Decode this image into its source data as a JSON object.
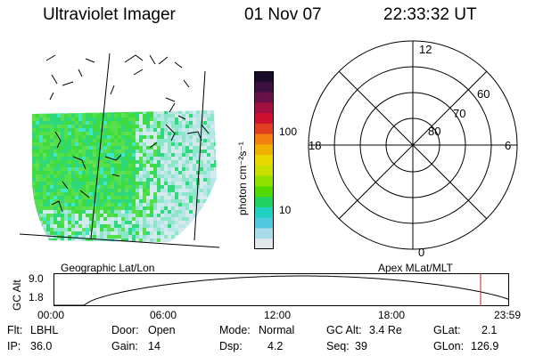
{
  "header": {
    "instrument": "Ultraviolet Imager",
    "date": "01 Nov 07",
    "time": "22:33:32 UT"
  },
  "colorbar": {
    "unit_label": "photon cm⁻²s⁻¹",
    "ticks": [
      "100",
      "10"
    ],
    "colors": [
      "#1a0a2a",
      "#3b1040",
      "#6a1048",
      "#a01040",
      "#cc1030",
      "#e04020",
      "#f08010",
      "#f0b000",
      "#e8d800",
      "#c8e000",
      "#90e000",
      "#50d800",
      "#20d060",
      "#20d0c0",
      "#50c8e0",
      "#a8dce8",
      "#dfe9ec"
    ]
  },
  "image_panel": {
    "label": "Geographic Lat/Lon",
    "palette": [
      "#3fdc3f",
      "#55e04a",
      "#2fd87a",
      "#8ce6c8",
      "#b8e6e8",
      "#d4eaec",
      "#62e05a",
      "#3ee8c8"
    ]
  },
  "polar_panel": {
    "label": "Apex  MLat/MLT",
    "mlt_labels": {
      "top": "12",
      "right": "6",
      "bottom": "0",
      "left": "18"
    },
    "lat_labels": [
      "60",
      "70",
      "80"
    ]
  },
  "altitude_plot": {
    "axis_title": "GC Alt",
    "y_ticks": [
      "9.0",
      "1.8"
    ],
    "x_ticks": [
      "00:00",
      "06:00",
      "12:00",
      "18:00",
      "23:59"
    ],
    "marker_color": "#c81e1e"
  },
  "info": {
    "filter_label": "Flt:",
    "filter_value": "LBHL",
    "ip_label": "IP:",
    "ip_value": "36.0",
    "door_label": "Door:",
    "door_value": "Open",
    "gain_label": "Gain:",
    "gain_value": "14",
    "mode_label": "Mode:",
    "mode_value": "Normal",
    "dsp_label": "Dsp:",
    "dsp_value": "4.2",
    "gcalt_label": "GC Alt:",
    "gcalt_value": "3.4 Re",
    "seq_label": "Seq:",
    "seq_value": "39",
    "glat_label": "GLat:",
    "glat_value": "2.1",
    "glon_label": "GLon:",
    "glon_value": "126.9"
  }
}
